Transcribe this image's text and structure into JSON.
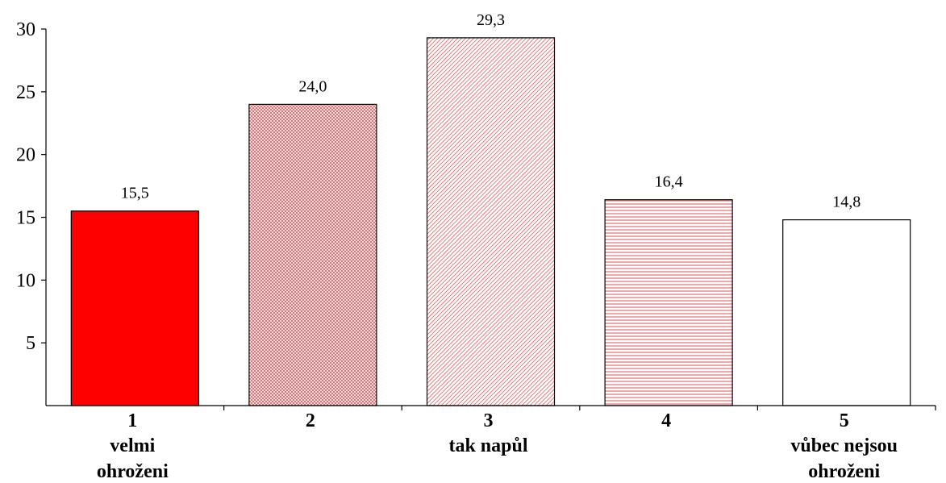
{
  "chart_data": {
    "type": "bar",
    "title": "",
    "xlabel": "",
    "ylabel": "",
    "ylim": [
      0,
      30
    ],
    "yticks": [
      5,
      10,
      15,
      20,
      25,
      30
    ],
    "grid": false,
    "categories": [
      "1",
      "2",
      "3",
      "4",
      "5"
    ],
    "category_sublabels": [
      [
        "velmi",
        "ohroženi"
      ],
      [],
      [
        "tak napůl"
      ],
      [],
      [
        "vůbec nejsou",
        "ohroženi"
      ]
    ],
    "values": [
      15.5,
      24.0,
      29.3,
      16.4,
      14.8
    ],
    "value_labels": [
      "15,5",
      "24,0",
      "29,3",
      "16,4",
      "14,8"
    ],
    "bar_fills": [
      "solid-red",
      "dense-crosshatch",
      "diagonal-hatch",
      "horizontal-lines",
      "white"
    ],
    "colors": {
      "accent": "#ff0000",
      "axis": "#000000",
      "background": "#ffffff"
    }
  }
}
